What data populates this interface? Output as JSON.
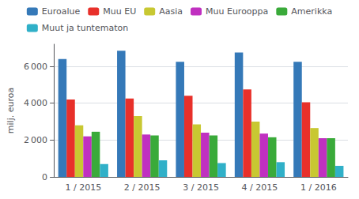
{
  "chart_data": {
    "type": "bar",
    "ylabel": "milj. euroa",
    "categories": [
      "1 / 2015",
      "2 / 2015",
      "3 / 2015",
      "4 / 2015",
      "1 / 2016"
    ],
    "series": [
      {
        "name": "Euroalue",
        "color": "#3579b8",
        "values": [
          6400,
          6850,
          6250,
          6750,
          6250
        ]
      },
      {
        "name": "Muu EU",
        "color": "#e8302a",
        "values": [
          4200,
          4250,
          4400,
          4750,
          4050
        ]
      },
      {
        "name": "Aasia",
        "color": "#c8c832",
        "values": [
          2800,
          3300,
          2850,
          3000,
          2650
        ]
      },
      {
        "name": "Muu Eurooppa",
        "color": "#c030c0",
        "values": [
          2200,
          2300,
          2400,
          2350,
          2100
        ]
      },
      {
        "name": "Amerikka",
        "color": "#3aaa3a",
        "values": [
          2450,
          2250,
          2250,
          2150,
          2100
        ]
      },
      {
        "name": "Muut ja tuntematon",
        "color": "#30b0c8",
        "values": [
          700,
          900,
          750,
          800,
          600
        ]
      }
    ],
    "ylim": [
      0,
      7200
    ],
    "yticks": [
      0,
      {
        "value": 2000,
        "label": "2 000"
      },
      {
        "value": 4000,
        "label": "4 000"
      },
      {
        "value": 6000,
        "label": "6 000"
      }
    ],
    "grid": true,
    "legend": "top"
  }
}
